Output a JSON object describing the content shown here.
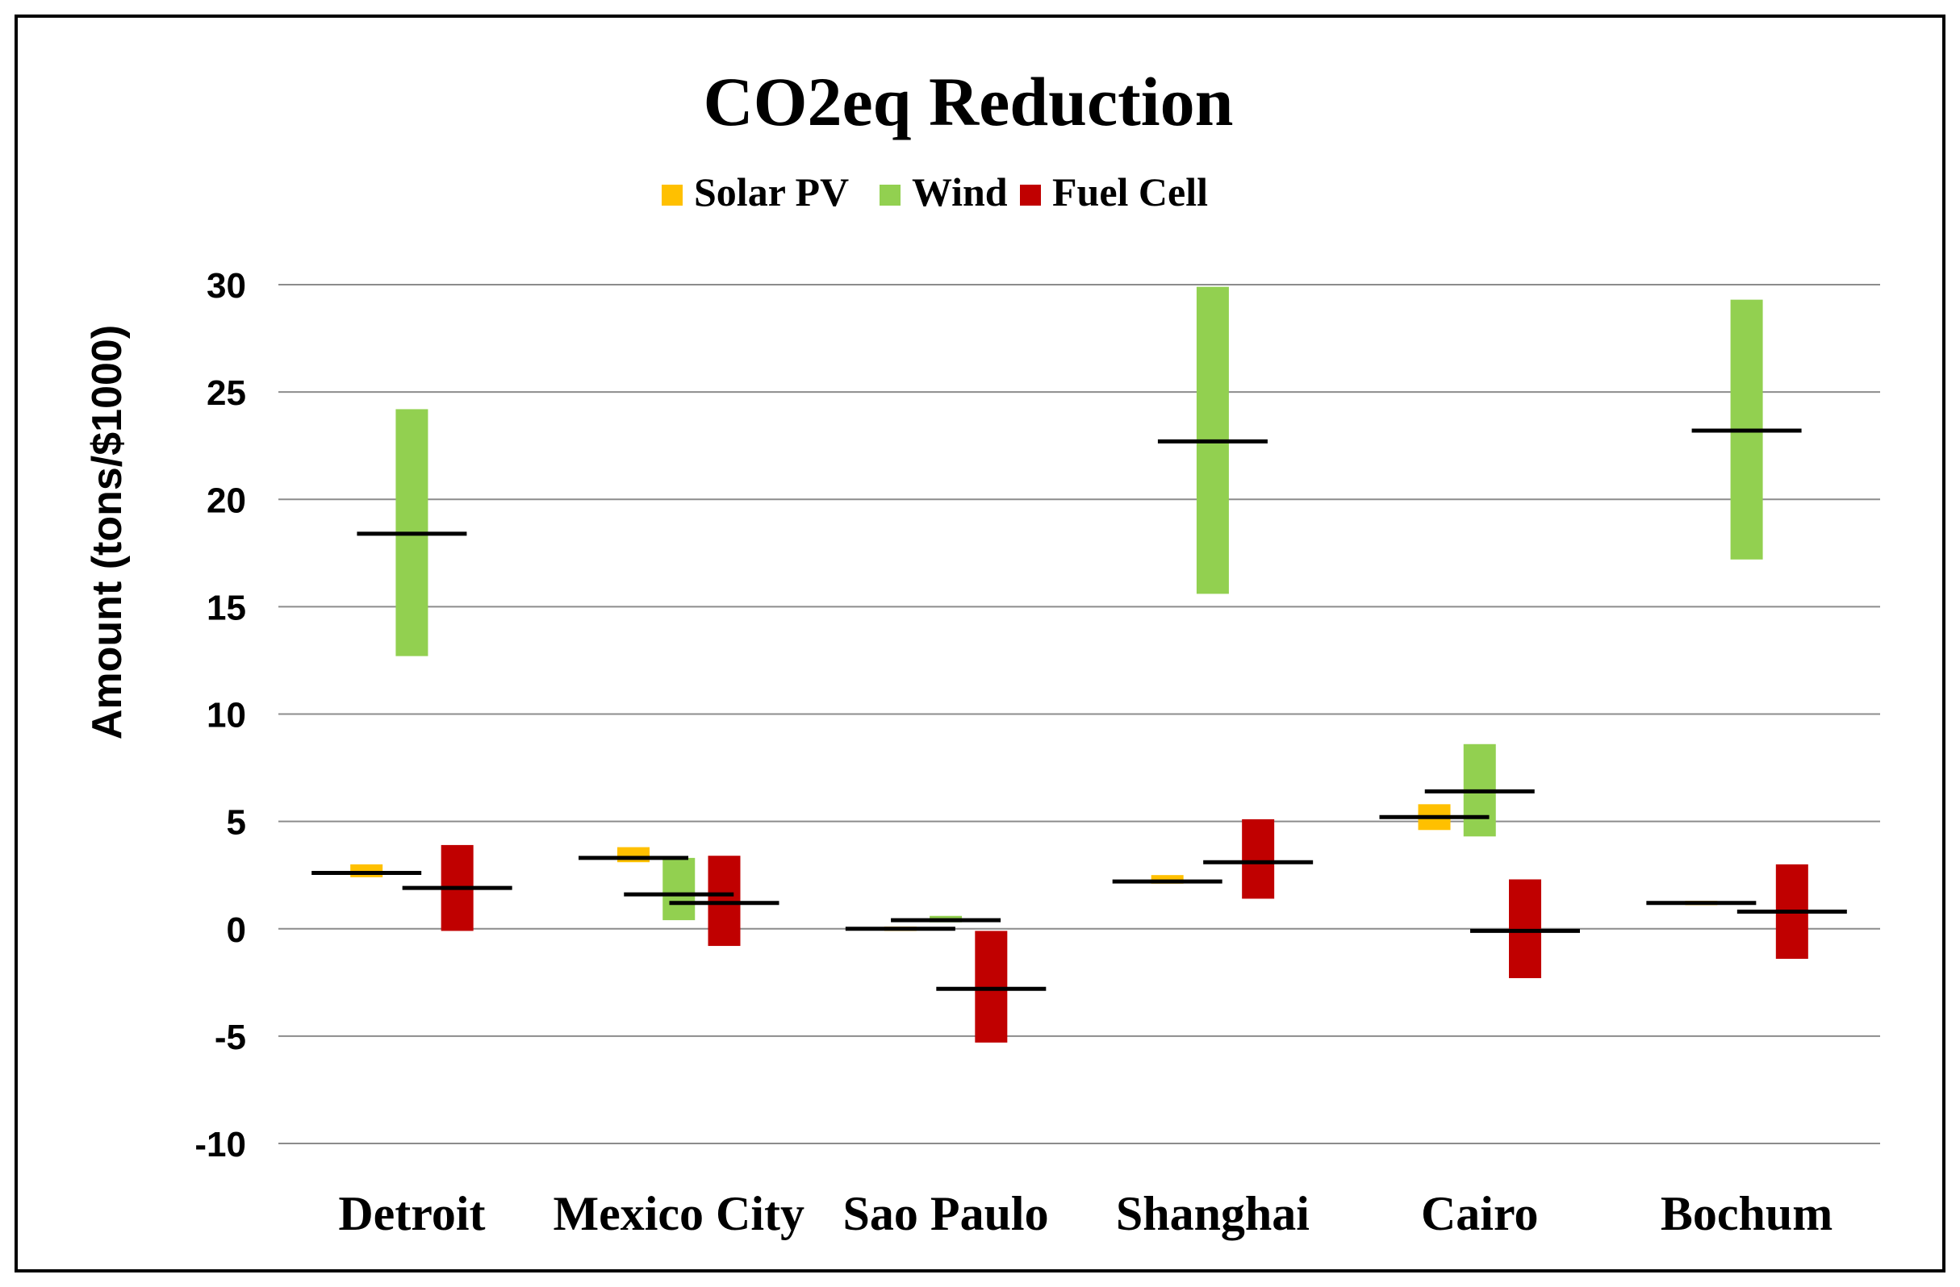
{
  "chart_data": {
    "type": "floating-bar",
    "title": "CO2eq Reduction",
    "ylabel": "Amount (tons/$1000)",
    "xlabel": "",
    "ylim": [
      -10,
      30
    ],
    "yticks": [
      -10,
      -5,
      0,
      5,
      10,
      15,
      20,
      25,
      30
    ],
    "grid": true,
    "legend_position": "top",
    "categories": [
      "Detroit",
      "Mexico City",
      "Sao Paulo",
      "Shanghai",
      "Cairo",
      "Bochum"
    ],
    "series": [
      {
        "name": "Solar PV",
        "color": "#FFC000",
        "ranges": [
          [
            2.4,
            3.0
          ],
          [
            3.1,
            3.8
          ],
          [
            -0.1,
            0.1
          ],
          [
            2.1,
            2.5
          ],
          [
            4.6,
            5.8
          ],
          [
            1.1,
            1.3
          ]
        ],
        "marks": [
          2.6,
          3.3,
          0.0,
          2.2,
          5.2,
          1.2
        ]
      },
      {
        "name": "Wind",
        "color": "#92D050",
        "ranges": [
          [
            12.7,
            24.2
          ],
          [
            0.4,
            3.3
          ],
          [
            0.3,
            0.6
          ],
          [
            15.6,
            29.9
          ],
          [
            4.3,
            8.6
          ],
          [
            17.2,
            29.3
          ]
        ],
        "marks": [
          18.4,
          1.6,
          0.4,
          22.7,
          6.4,
          23.2
        ]
      },
      {
        "name": "Fuel Cell",
        "color": "#C00000",
        "ranges": [
          [
            -0.1,
            3.9
          ],
          [
            -0.8,
            3.4
          ],
          [
            -5.3,
            -0.1
          ],
          [
            1.4,
            5.1
          ],
          [
            -2.3,
            2.3
          ],
          [
            -1.4,
            3.0
          ]
        ],
        "marks": [
          1.9,
          1.2,
          -2.8,
          3.1,
          -0.1,
          0.8
        ]
      }
    ]
  }
}
